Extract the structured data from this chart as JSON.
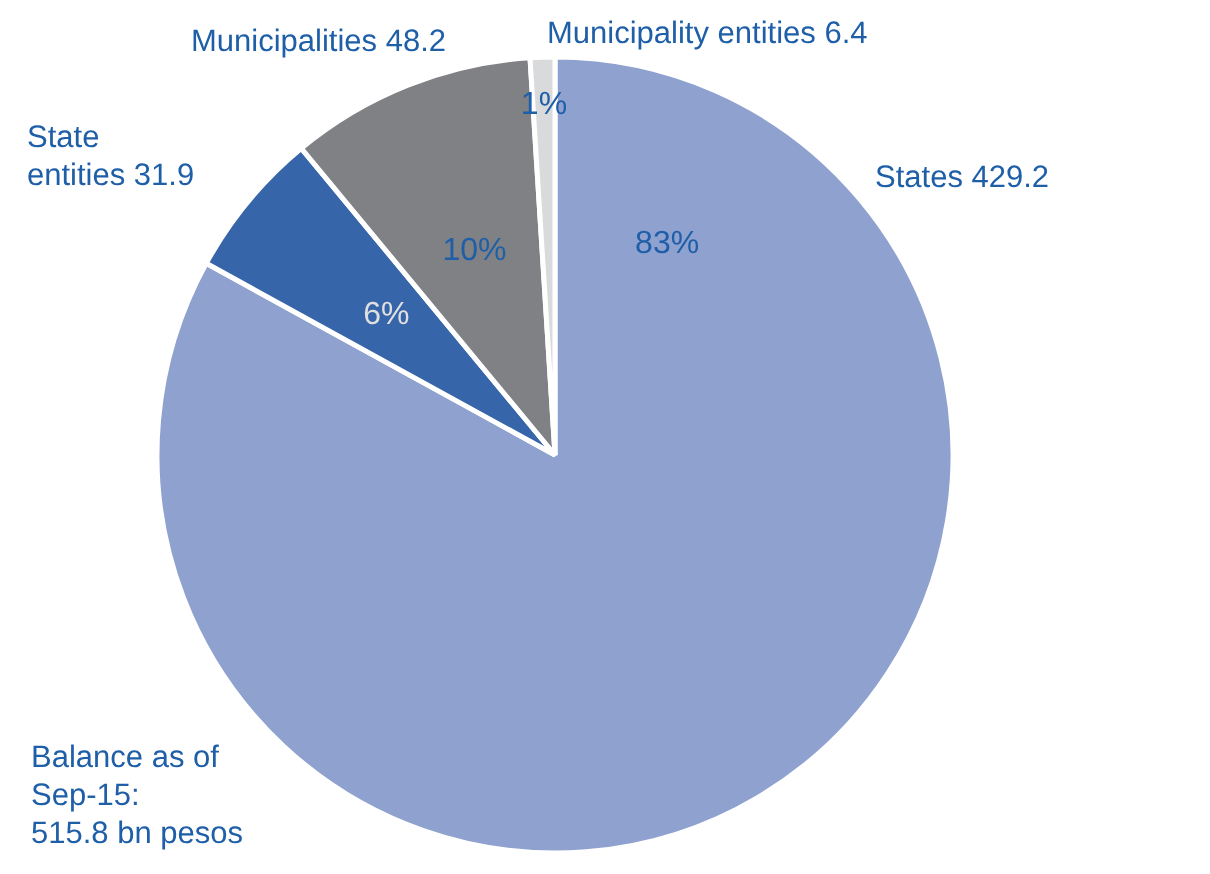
{
  "chart_data": {
    "type": "pie",
    "categories": [
      "States 429.2",
      "State\nentities 31.9",
      "Municipalities 48.2",
      "Municipality entities 6.4"
    ],
    "values": [
      83,
      6,
      10,
      1
    ],
    "colors": [
      "#8fa1cf",
      "#3765a9",
      "#808184",
      "#d9dadc"
    ],
    "value_labels": [
      "83%",
      "6%",
      "10%",
      "1%"
    ],
    "annotations": [
      "Balance as of\nSep-15:\n515.8 bn pesos"
    ]
  }
}
